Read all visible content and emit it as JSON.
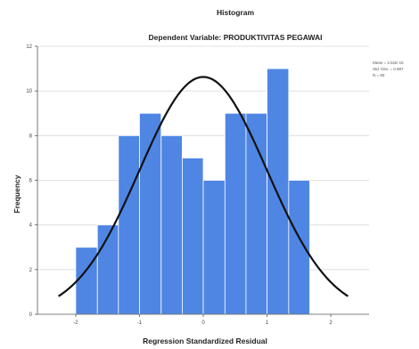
{
  "chart_data": {
    "type": "bar",
    "title": "Histogram",
    "subtitle": "Dependent Variable: PRODUKTIVITAS PEGAWAI",
    "xlabel": "Regression Standardized Residual",
    "ylabel": "Frequency",
    "xlim": [
      -2.6,
      2.6
    ],
    "ylim": [
      0,
      12
    ],
    "x_ticks": [
      -2,
      -1,
      0,
      1,
      2
    ],
    "y_ticks": [
      0,
      2,
      4,
      6,
      8,
      10,
      12
    ],
    "grid": "horizontal",
    "bins": [
      {
        "start": -2.0,
        "end": -1.66,
        "count": 3
      },
      {
        "start": -1.66,
        "end": -1.33,
        "count": 4
      },
      {
        "start": -1.33,
        "end": -1.0,
        "count": 8
      },
      {
        "start": -1.0,
        "end": -0.66,
        "count": 9
      },
      {
        "start": -0.66,
        "end": -0.33,
        "count": 8
      },
      {
        "start": -0.33,
        "end": 0.0,
        "count": 7
      },
      {
        "start": 0.0,
        "end": 0.34,
        "count": 6
      },
      {
        "start": 0.34,
        "end": 0.67,
        "count": 9
      },
      {
        "start": 0.67,
        "end": 1.0,
        "count": 9
      },
      {
        "start": 1.0,
        "end": 1.34,
        "count": 11
      },
      {
        "start": 1.34,
        "end": 1.67,
        "count": 6
      }
    ],
    "normal_curve": {
      "mean": 0,
      "std_dev": 1,
      "n": 80,
      "bin_width": 0.333
    },
    "stats": [
      "Mean = 2.51E-15",
      "Std. Dev. = 0.987",
      "N = 80"
    ],
    "colors": {
      "bar": "#4f86e3",
      "bar_edge": "#ffffff",
      "curve": "#111111",
      "grid": "#d9d9d9",
      "axis": "#555555"
    }
  }
}
